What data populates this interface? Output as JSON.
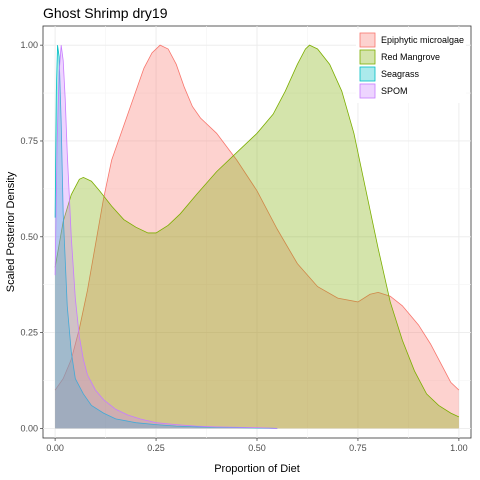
{
  "chart_data": {
    "type": "area",
    "title": "Ghost Shrimp dry19",
    "xlabel": "Proportion of Diet",
    "ylabel": "Scaled Posterior Density",
    "xlim": [
      -0.03,
      1.03
    ],
    "ylim": [
      -0.025,
      1.05
    ],
    "x_ticks": [
      0.0,
      0.25,
      0.5,
      0.75,
      1.0
    ],
    "x_tick_labels": [
      "0.00",
      "0.25",
      "0.50",
      "0.75",
      "1.00"
    ],
    "y_ticks": [
      0.0,
      0.25,
      0.5,
      0.75,
      1.0
    ],
    "y_tick_labels": [
      "0.00",
      "0.25",
      "0.50",
      "0.75",
      "1.00"
    ],
    "grid": true,
    "legend_position": "top-right",
    "series": [
      {
        "name": "Epiphytic microalgae",
        "fill": "#F8766D",
        "line": "#F8766D",
        "points": [
          [
            0.0,
            0.1
          ],
          [
            0.02,
            0.13
          ],
          [
            0.04,
            0.18
          ],
          [
            0.06,
            0.26
          ],
          [
            0.08,
            0.36
          ],
          [
            0.1,
            0.48
          ],
          [
            0.12,
            0.6
          ],
          [
            0.14,
            0.7
          ],
          [
            0.16,
            0.76
          ],
          [
            0.18,
            0.82
          ],
          [
            0.2,
            0.88
          ],
          [
            0.22,
            0.94
          ],
          [
            0.24,
            0.98
          ],
          [
            0.26,
            1.0
          ],
          [
            0.28,
            0.99
          ],
          [
            0.3,
            0.95
          ],
          [
            0.32,
            0.89
          ],
          [
            0.34,
            0.84
          ],
          [
            0.36,
            0.81
          ],
          [
            0.4,
            0.77
          ],
          [
            0.45,
            0.7
          ],
          [
            0.5,
            0.62
          ],
          [
            0.55,
            0.52
          ],
          [
            0.6,
            0.43
          ],
          [
            0.65,
            0.37
          ],
          [
            0.7,
            0.34
          ],
          [
            0.75,
            0.33
          ],
          [
            0.78,
            0.35
          ],
          [
            0.8,
            0.355
          ],
          [
            0.83,
            0.345
          ],
          [
            0.86,
            0.32
          ],
          [
            0.9,
            0.27
          ],
          [
            0.93,
            0.22
          ],
          [
            0.96,
            0.16
          ],
          [
            0.98,
            0.12
          ],
          [
            1.0,
            0.1
          ]
        ]
      },
      {
        "name": "Red Mangrove",
        "fill": "#7CAE00",
        "line": "#7CAE00",
        "points": [
          [
            0.0,
            0.42
          ],
          [
            0.02,
            0.54
          ],
          [
            0.04,
            0.61
          ],
          [
            0.06,
            0.65
          ],
          [
            0.07,
            0.655
          ],
          [
            0.09,
            0.645
          ],
          [
            0.11,
            0.62
          ],
          [
            0.14,
            0.58
          ],
          [
            0.17,
            0.545
          ],
          [
            0.2,
            0.525
          ],
          [
            0.23,
            0.51
          ],
          [
            0.25,
            0.51
          ],
          [
            0.28,
            0.53
          ],
          [
            0.31,
            0.56
          ],
          [
            0.35,
            0.61
          ],
          [
            0.4,
            0.67
          ],
          [
            0.45,
            0.72
          ],
          [
            0.5,
            0.77
          ],
          [
            0.54,
            0.82
          ],
          [
            0.57,
            0.88
          ],
          [
            0.6,
            0.95
          ],
          [
            0.62,
            0.99
          ],
          [
            0.63,
            1.0
          ],
          [
            0.65,
            0.99
          ],
          [
            0.68,
            0.95
          ],
          [
            0.71,
            0.88
          ],
          [
            0.74,
            0.77
          ],
          [
            0.77,
            0.62
          ],
          [
            0.8,
            0.47
          ],
          [
            0.83,
            0.33
          ],
          [
            0.86,
            0.23
          ],
          [
            0.89,
            0.15
          ],
          [
            0.92,
            0.09
          ],
          [
            0.95,
            0.06
          ],
          [
            0.98,
            0.04
          ],
          [
            1.0,
            0.03
          ]
        ]
      },
      {
        "name": "Seagrass",
        "fill": "#00BFC4",
        "line": "#00BFC4",
        "points": [
          [
            0.0,
            0.55
          ],
          [
            0.003,
            0.88
          ],
          [
            0.006,
            1.0
          ],
          [
            0.01,
            0.97
          ],
          [
            0.015,
            0.8
          ],
          [
            0.02,
            0.56
          ],
          [
            0.03,
            0.32
          ],
          [
            0.04,
            0.2
          ],
          [
            0.05,
            0.13
          ],
          [
            0.07,
            0.09
          ],
          [
            0.09,
            0.06
          ],
          [
            0.12,
            0.04
          ],
          [
            0.15,
            0.025
          ],
          [
            0.2,
            0.015
          ],
          [
            0.25,
            0.01
          ],
          [
            0.3,
            0.006
          ],
          [
            0.35,
            0.004
          ],
          [
            0.4,
            0.003
          ],
          [
            0.45,
            0.002
          ],
          [
            0.5,
            0.001
          ],
          [
            0.55,
            0.0
          ]
        ]
      },
      {
        "name": "SPOM",
        "fill": "#C77CFF",
        "line": "#C77CFF",
        "points": [
          [
            0.0,
            0.4
          ],
          [
            0.005,
            0.75
          ],
          [
            0.01,
            0.93
          ],
          [
            0.015,
            1.0
          ],
          [
            0.02,
            0.96
          ],
          [
            0.025,
            0.86
          ],
          [
            0.03,
            0.72
          ],
          [
            0.04,
            0.5
          ],
          [
            0.05,
            0.34
          ],
          [
            0.06,
            0.24
          ],
          [
            0.07,
            0.18
          ],
          [
            0.08,
            0.14
          ],
          [
            0.1,
            0.1
          ],
          [
            0.12,
            0.075
          ],
          [
            0.15,
            0.05
          ],
          [
            0.18,
            0.035
          ],
          [
            0.21,
            0.025
          ],
          [
            0.25,
            0.015
          ],
          [
            0.3,
            0.01
          ],
          [
            0.35,
            0.006
          ],
          [
            0.4,
            0.004
          ],
          [
            0.5,
            0.002
          ],
          [
            0.55,
            0.0
          ]
        ]
      }
    ]
  }
}
